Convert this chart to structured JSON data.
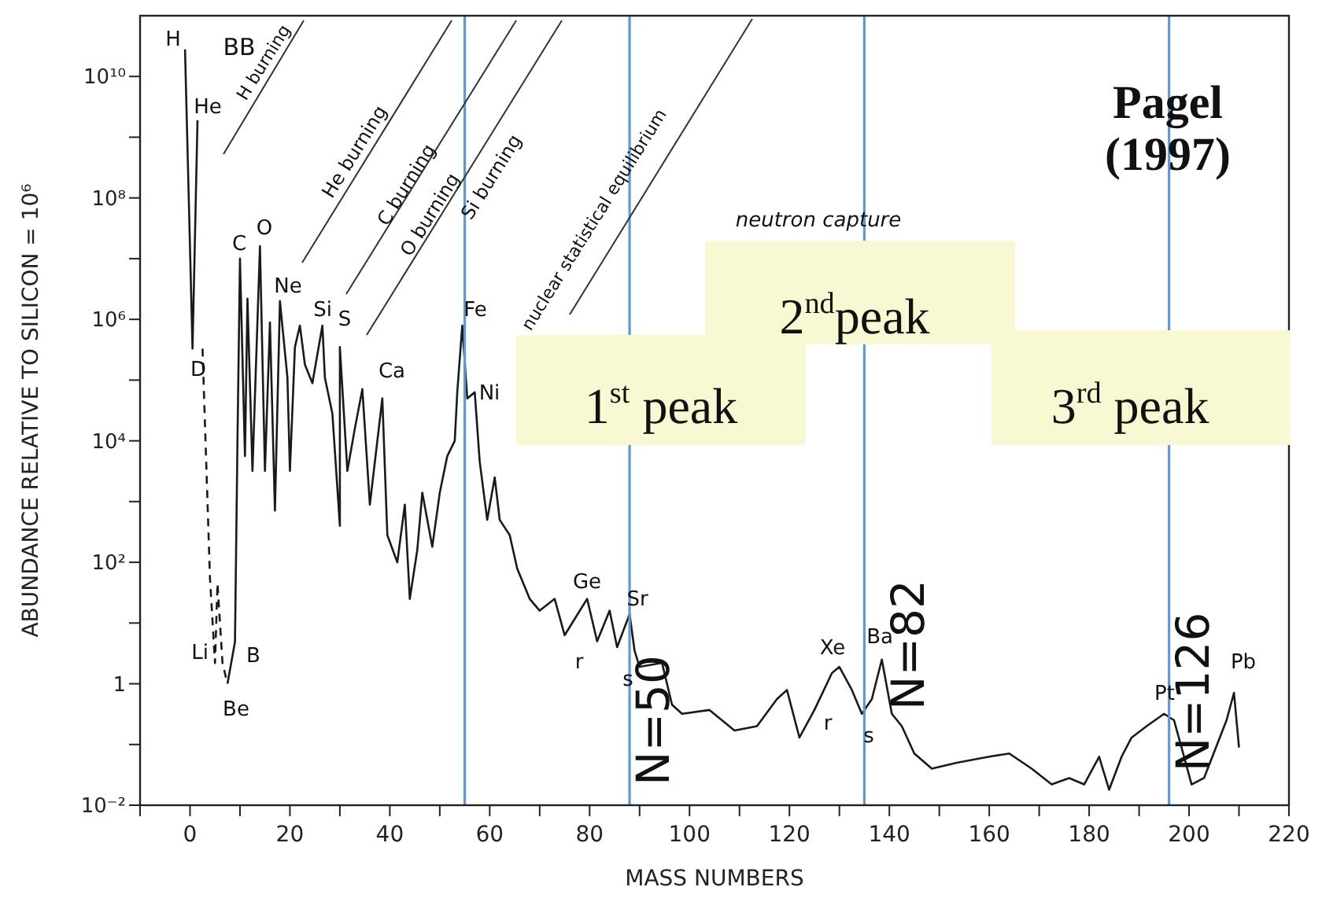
{
  "chart_data": {
    "type": "line",
    "xlabel": "MASS NUMBERS",
    "ylabel": "ABUNDANCE RELATIVE TO SILICON = 10⁶",
    "log": "y",
    "xlim": [
      -10,
      220
    ],
    "ylim": [
      0.01,
      100000000000.0
    ],
    "xticks": [
      {
        "value": -10,
        "label": null
      },
      0,
      {
        "value": 10,
        "label": null
      },
      20,
      {
        "value": 30,
        "label": null
      },
      40,
      {
        "value": 50,
        "label": null
      },
      60,
      {
        "value": 70,
        "label": null
      },
      80,
      {
        "value": 90,
        "label": null
      },
      100,
      {
        "value": 110,
        "label": null
      },
      120,
      {
        "value": 130,
        "label": null
      },
      140,
      {
        "value": 150,
        "label": null
      },
      160,
      {
        "value": 170,
        "label": null
      },
      180,
      {
        "value": 190,
        "label": null
      },
      200,
      {
        "value": 210,
        "label": null
      },
      220
    ],
    "yticks": [
      {
        "value": 0.01,
        "label": "10⁻²"
      },
      {
        "value": 0.1,
        "label": null
      },
      1,
      {
        "value": 10,
        "label": null
      },
      {
        "value": 100,
        "label": "10²"
      },
      {
        "value": 1000,
        "label": null
      },
      {
        "value": 10000,
        "label": "10⁴"
      },
      {
        "value": 100000,
        "label": null
      },
      {
        "value": 1000000,
        "label": "10⁶"
      },
      {
        "value": 10000000,
        "label": null
      },
      {
        "value": 100000000,
        "label": "10⁸"
      },
      {
        "value": 1000000000,
        "label": null
      },
      {
        "value": 10000000000,
        "label": "10¹⁰"
      }
    ],
    "series": [
      {
        "color": "#1a1a1a",
        "x": [
          -1,
          0.5,
          1.5
        ],
        "values": [
          28000000000.0,
          330000.0,
          1900000000.0
        ]
      },
      {
        "color": "#1a1a1a",
        "line_style": "dashed",
        "x": [
          2.5,
          4,
          5,
          5.5,
          6.5,
          7.5
        ],
        "values": [
          330000.0,
          54,
          2.2,
          45,
          2.2,
          1.0
        ]
      },
      {
        "color": "#1a1a1a",
        "x": [
          7.5,
          9,
          9.5,
          10,
          11,
          11.5,
          12.5,
          14,
          15,
          16,
          17,
          18,
          19.5,
          20,
          21,
          22,
          23,
          24.5,
          26.5,
          27,
          28.5,
          30,
          30,
          31.5,
          33,
          34.5,
          36,
          38.5,
          39.5,
          41.5,
          43,
          44,
          45.5,
          46.5,
          48.5,
          50,
          51.5,
          53,
          53.5,
          54.5,
          55.5,
          57,
          58,
          59.5,
          61,
          62,
          64,
          65.5,
          68,
          70,
          73,
          75,
          79.5,
          81.5,
          84,
          85.5,
          88,
          89,
          90,
          94.5,
          96.5,
          98.5,
          104,
          109,
          113.5,
          117.5,
          119.5,
          122,
          125,
          128.5,
          130,
          132.5,
          134.5,
          136.5,
          138.5,
          140.5,
          142.5,
          145,
          148.5,
          153.5,
          160,
          164,
          168.5,
          172.5,
          176,
          179,
          182,
          184,
          186.5,
          188.5,
          191.5,
          195,
          197,
          199,
          200.5,
          203,
          207.5,
          209,
          210
        ],
        "values": [
          1.0,
          4.9,
          10000.0,
          10000000.0,
          5600.0,
          2200000.0,
          3200.0,
          16000000.0,
          3200.0,
          890000.0,
          710,
          2000000.0,
          110000.0,
          3200.0,
          350000.0,
          790000.0,
          180000.0,
          89000.0,
          790000.0,
          110000.0,
          28000.0,
          400,
          350000.0,
          3200.0,
          16000.0,
          71000.0,
          890,
          50000.0,
          280,
          100,
          890,
          25,
          160,
          1400,
          180,
          1400,
          5600,
          10000.0,
          63000.0,
          790000.0,
          50000.0,
          63000.0,
          4500,
          500,
          2500,
          500,
          280,
          79,
          25,
          16,
          25,
          6.3,
          25,
          5.0,
          16,
          4.0,
          14,
          3.5,
          1.9,
          2.2,
          0.45,
          0.32,
          0.37,
          0.17,
          0.2,
          0.56,
          0.79,
          0.13,
          0.37,
          1.5,
          1.9,
          0.79,
          0.32,
          0.56,
          2.5,
          0.32,
          0.2,
          0.071,
          0.04,
          0.05,
          0.063,
          0.071,
          0.04,
          0.022,
          0.028,
          0.022,
          0.063,
          0.018,
          0.063,
          0.13,
          0.2,
          0.32,
          0.25,
          0.063,
          0.022,
          0.028,
          0.25,
          0.71,
          0.089
        ]
      }
    ],
    "ref_lines": [
      {
        "axis": "x",
        "value": 55,
        "label": null,
        "color": "#5b9bd5"
      },
      {
        "axis": "x",
        "value": 88,
        "label": null,
        "color": "#5b9bd5"
      },
      {
        "axis": "x",
        "value": 135,
        "label": null,
        "color": "#5b9bd5"
      },
      {
        "axis": "x",
        "value": 196,
        "label": null,
        "color": "#5b9bd5"
      }
    ],
    "annotations": [
      "H",
      "He",
      "D",
      "C",
      "O",
      "Ne",
      "Si",
      "S",
      "Ca",
      "Fe",
      "Ni",
      "Li",
      "B",
      "Be",
      "Ge",
      "Sr",
      "r",
      "s",
      "Xe",
      "Ba",
      "r",
      "s",
      "Pt",
      "Pb",
      "BB",
      "H burning",
      "He burning",
      "C burning",
      "O burning",
      "Si burning",
      "nuclear statistical equilibrium",
      "neutron capture",
      "Pagel (1997)",
      "1$^{st}$ peak",
      "2$^{nd}$peak",
      "3$^{rd}$ peak",
      "N=50",
      "N=82",
      "N=126"
    ]
  }
}
